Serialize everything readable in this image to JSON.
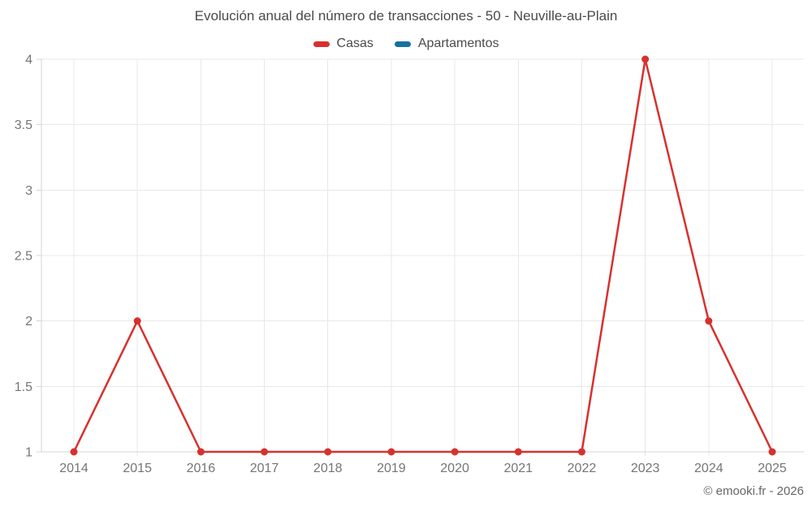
{
  "title": "Evolución anual del número de transacciones - 50 - Neuville-au-Plain",
  "legend": {
    "items": [
      {
        "label": "Casas",
        "color": "#d7312e"
      },
      {
        "label": "Apartamentos",
        "color": "#17719e"
      }
    ]
  },
  "watermark": "© emooki.fr - 2026",
  "colors": {
    "gridline": "#e8e8e8",
    "axis_line": "#d6d6d6",
    "tick_label": "#757575",
    "title_text": "#4a4a4a",
    "watermark_text": "#666666",
    "background": "#ffffff"
  },
  "chart_data": {
    "type": "line",
    "title": "Evolución anual del número de transacciones - 50 - Neuville-au-Plain",
    "categories": [
      "2014",
      "2015",
      "2016",
      "2017",
      "2018",
      "2019",
      "2020",
      "2021",
      "2022",
      "2023",
      "2024",
      "2025"
    ],
    "series": [
      {
        "name": "Casas",
        "color": "#d7312e",
        "marker": "circle",
        "values": [
          1,
          2,
          1,
          1,
          1,
          1,
          1,
          1,
          1,
          4,
          2,
          1
        ]
      },
      {
        "name": "Apartamentos",
        "color": "#17719e",
        "marker": "circle",
        "values": []
      }
    ],
    "xlabel": "",
    "ylabel": "",
    "ylim": [
      1,
      4
    ],
    "yticks": [
      1,
      1.5,
      2,
      2.5,
      3,
      3.5,
      4
    ],
    "ytick_labels": [
      "1",
      "1.5",
      "2",
      "2.5",
      "3",
      "3.5",
      "4"
    ],
    "grid": true,
    "legend_position": "top"
  }
}
